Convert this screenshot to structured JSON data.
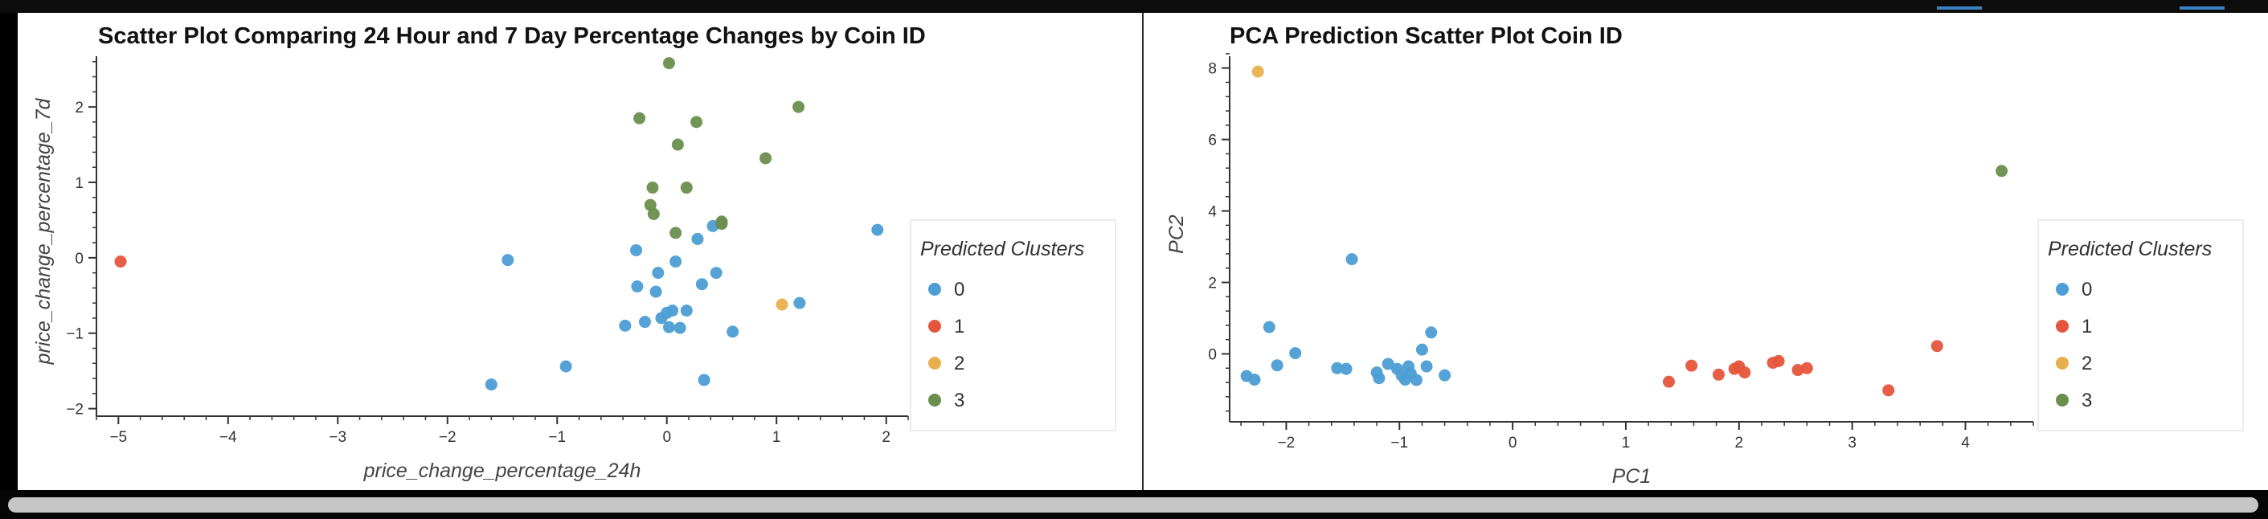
{
  "colors": {
    "cluster_0": "#4c9ed4",
    "cluster_1": "#e5553b",
    "cluster_2": "#e8b04d",
    "cluster_3": "#6a8e4e"
  },
  "chart_data": [
    {
      "type": "scatter",
      "title": "Scatter Plot Comparing 24 Hour and 7 Day Percentage Changes by Coin ID",
      "xlabel": "price_change_percentage_24h",
      "ylabel": "price_change_percentage_7d",
      "xlim": [
        -5.2,
        2.2
      ],
      "ylim": [
        -2.1,
        2.8
      ],
      "xticks": [
        -5,
        -4,
        -3,
        -2,
        -1,
        0,
        1,
        2
      ],
      "yticks": [
        -2,
        -1,
        0,
        1,
        2
      ],
      "grid": false,
      "legend": {
        "title": "Predicted Clusters",
        "placement": "right",
        "entries": [
          "0",
          "1",
          "2",
          "3"
        ]
      },
      "series": [
        {
          "name": "0",
          "color": "#4c9ed4",
          "points": [
            [
              -1.45,
              -0.03
            ],
            [
              -1.6,
              -1.68
            ],
            [
              -0.92,
              -1.44
            ],
            [
              -0.28,
              0.1
            ],
            [
              -0.27,
              -0.38
            ],
            [
              -0.38,
              -0.9
            ],
            [
              -0.2,
              -0.85
            ],
            [
              -0.1,
              -0.45
            ],
            [
              -0.08,
              -0.2
            ],
            [
              -0.05,
              -0.8
            ],
            [
              0.0,
              -0.73
            ],
            [
              0.05,
              -0.7
            ],
            [
              0.02,
              -0.92
            ],
            [
              0.12,
              -0.93
            ],
            [
              0.08,
              -0.05
            ],
            [
              0.18,
              -0.7
            ],
            [
              0.28,
              0.25
            ],
            [
              0.32,
              -0.35
            ],
            [
              0.34,
              -1.62
            ],
            [
              0.42,
              0.42
            ],
            [
              0.45,
              -0.2
            ],
            [
              0.6,
              -0.98
            ],
            [
              1.21,
              -0.6
            ],
            [
              1.92,
              0.37
            ]
          ]
        },
        {
          "name": "1",
          "color": "#e5553b",
          "points": [
            [
              -4.98,
              -0.05
            ]
          ]
        },
        {
          "name": "2",
          "color": "#e8b04d",
          "points": [
            [
              1.05,
              -0.62
            ]
          ]
        },
        {
          "name": "3",
          "color": "#6a8e4e",
          "points": [
            [
              0.02,
              2.58
            ],
            [
              -0.25,
              1.85
            ],
            [
              0.27,
              1.8
            ],
            [
              1.2,
              2.0
            ],
            [
              0.1,
              1.5
            ],
            [
              0.9,
              1.32
            ],
            [
              -0.13,
              0.93
            ],
            [
              0.18,
              0.93
            ],
            [
              -0.15,
              0.7
            ],
            [
              -0.12,
              0.58
            ],
            [
              0.5,
              0.48
            ],
            [
              0.5,
              0.45
            ],
            [
              0.08,
              0.33
            ]
          ]
        }
      ]
    },
    {
      "type": "scatter",
      "title": "PCA Prediction Scatter Plot Coin ID",
      "xlabel": "PC1",
      "ylabel": "PC2",
      "xlim": [
        -2.5,
        4.6
      ],
      "ylim": [
        -1.9,
        8.6
      ],
      "xticks": [
        -2,
        -1,
        0,
        1,
        2,
        3,
        4
      ],
      "yticks": [
        0,
        2,
        4,
        6,
        8
      ],
      "grid": false,
      "legend": {
        "title": "Predicted Clusters",
        "placement": "right",
        "entries": [
          "0",
          "1",
          "2",
          "3"
        ]
      },
      "series": [
        {
          "name": "0",
          "color": "#4c9ed4",
          "points": [
            [
              -2.35,
              -0.62
            ],
            [
              -2.28,
              -0.72
            ],
            [
              -2.15,
              0.75
            ],
            [
              -2.08,
              -0.32
            ],
            [
              -1.92,
              0.02
            ],
            [
              -1.55,
              -0.4
            ],
            [
              -1.47,
              -0.42
            ],
            [
              -1.42,
              2.65
            ],
            [
              -1.2,
              -0.52
            ],
            [
              -1.18,
              -0.68
            ],
            [
              -1.1,
              -0.28
            ],
            [
              -1.02,
              -0.42
            ],
            [
              -0.98,
              -0.6
            ],
            [
              -0.95,
              -0.72
            ],
            [
              -0.92,
              -0.35
            ],
            [
              -0.9,
              -0.55
            ],
            [
              -0.85,
              -0.73
            ],
            [
              -0.8,
              0.12
            ],
            [
              -0.76,
              -0.35
            ],
            [
              -0.72,
              0.6
            ],
            [
              -0.6,
              -0.6
            ]
          ]
        },
        {
          "name": "1",
          "color": "#e5553b",
          "points": [
            [
              1.38,
              -0.78
            ],
            [
              1.58,
              -0.33
            ],
            [
              1.82,
              -0.58
            ],
            [
              1.96,
              -0.42
            ],
            [
              2.0,
              -0.35
            ],
            [
              2.05,
              -0.52
            ],
            [
              2.3,
              -0.25
            ],
            [
              2.35,
              -0.2
            ],
            [
              2.52,
              -0.45
            ],
            [
              2.6,
              -0.4
            ],
            [
              3.32,
              -1.02
            ],
            [
              3.75,
              0.22
            ]
          ]
        },
        {
          "name": "2",
          "color": "#e8b04d",
          "points": [
            [
              -2.25,
              7.9
            ]
          ]
        },
        {
          "name": "3",
          "color": "#6a8e4e",
          "points": [
            [
              4.32,
              5.12
            ]
          ]
        }
      ]
    }
  ]
}
